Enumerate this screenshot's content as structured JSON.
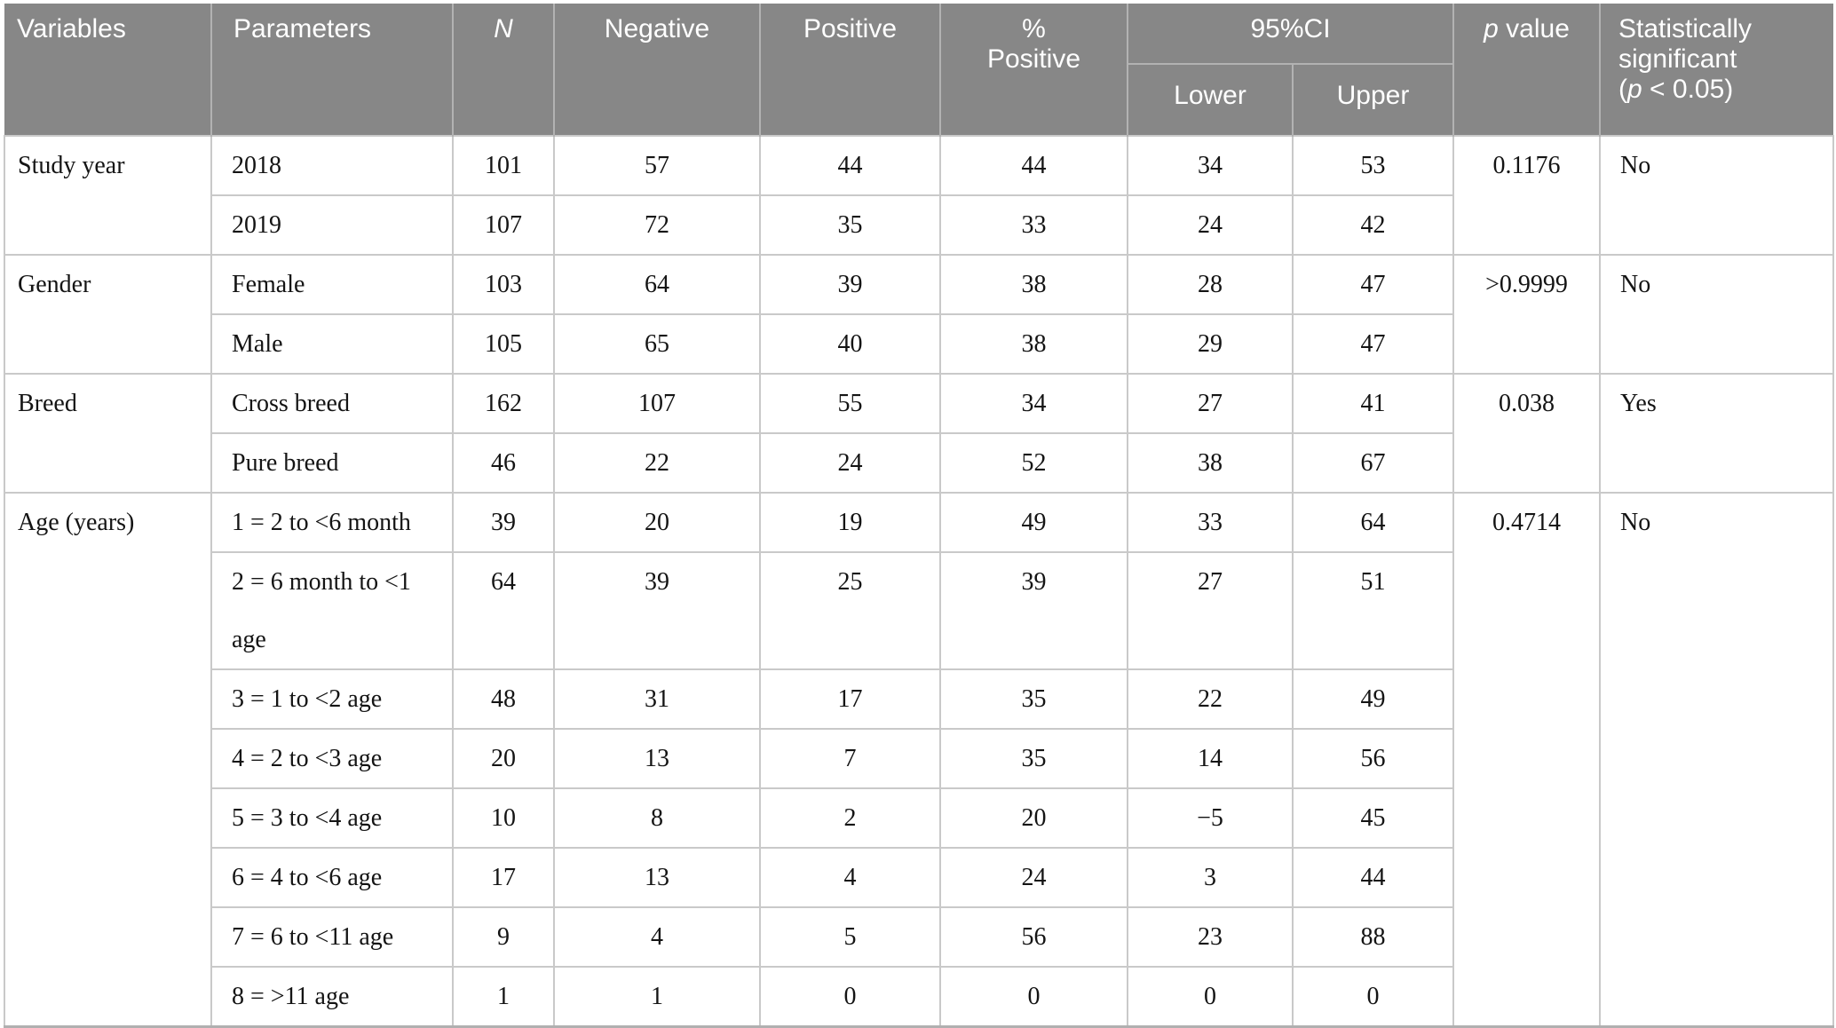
{
  "colors": {
    "header_bg": "#878787",
    "header_line": "#b2b2b2",
    "grid_line": "#c9c9c9",
    "border_bottom": "#b0b0b0"
  },
  "table": {
    "header": {
      "variables": "Variables",
      "parameters": "Parameters",
      "n_italic": "N",
      "negative": "Negative",
      "positive": "Positive",
      "pct_line1": "%",
      "pct_line2": "Positive",
      "ci": "95%CI",
      "ci_lower": "Lower",
      "ci_upper": "Upper",
      "p_italic": "p",
      "p_rest": " value",
      "sig_line1": "Statistically",
      "sig_line2": "significant",
      "sig_open": "(",
      "sig_p": "p",
      "sig_rest": " < 0.05)"
    },
    "groups": [
      {
        "variable": "Study year",
        "p_value": "0.1176",
        "significant": "No",
        "rows": [
          {
            "parameter": "2018",
            "n": "101",
            "negative": "57",
            "positive": "44",
            "pct_positive": "44",
            "lower": "34",
            "upper": "53"
          },
          {
            "parameter": "2019",
            "n": "107",
            "negative": "72",
            "positive": "35",
            "pct_positive": "33",
            "lower": "24",
            "upper": "42"
          }
        ]
      },
      {
        "variable": "Gender",
        "p_value": ">0.9999",
        "significant": "No",
        "rows": [
          {
            "parameter": "Female",
            "n": "103",
            "negative": "64",
            "positive": "39",
            "pct_positive": "38",
            "lower": "28",
            "upper": "47"
          },
          {
            "parameter": "Male",
            "n": "105",
            "negative": "65",
            "positive": "40",
            "pct_positive": "38",
            "lower": "29",
            "upper": "47"
          }
        ]
      },
      {
        "variable": "Breed",
        "p_value": "0.038",
        "significant": "Yes",
        "rows": [
          {
            "parameter": "Cross breed",
            "n": "162",
            "negative": "107",
            "positive": "55",
            "pct_positive": "34",
            "lower": "27",
            "upper": "41"
          },
          {
            "parameter": "Pure breed",
            "n": "46",
            "negative": "22",
            "positive": "24",
            "pct_positive": "52",
            "lower": "38",
            "upper": "67"
          }
        ]
      },
      {
        "variable": "Age (years)",
        "p_value": "0.4714",
        "significant": "No",
        "rows": [
          {
            "parameter": "1 = 2 to <6 month",
            "n": "39",
            "negative": "20",
            "positive": "19",
            "pct_positive": "49",
            "lower": "33",
            "upper": "64"
          },
          {
            "parameter": "2 = 6 month to <1 age",
            "n": "64",
            "negative": "39",
            "positive": "25",
            "pct_positive": "39",
            "lower": "27",
            "upper": "51"
          },
          {
            "parameter": "3 = 1 to <2 age",
            "n": "48",
            "negative": "31",
            "positive": "17",
            "pct_positive": "35",
            "lower": "22",
            "upper": "49"
          },
          {
            "parameter": "4 = 2 to <3 age",
            "n": "20",
            "negative": "13",
            "positive": "7",
            "pct_positive": "35",
            "lower": "14",
            "upper": "56"
          },
          {
            "parameter": "5 = 3 to <4 age",
            "n": "10",
            "negative": "8",
            "positive": "2",
            "pct_positive": "20",
            "lower": "−5",
            "upper": "45"
          },
          {
            "parameter": "6 = 4 to <6 age",
            "n": "17",
            "negative": "13",
            "positive": "4",
            "pct_positive": "24",
            "lower": "3",
            "upper": "44"
          },
          {
            "parameter": "7 = 6 to <11 age",
            "n": "9",
            "negative": "4",
            "positive": "5",
            "pct_positive": "56",
            "lower": "23",
            "upper": "88"
          },
          {
            "parameter": "8 = >11 age",
            "n": "1",
            "negative": "1",
            "positive": "0",
            "pct_positive": "0",
            "lower": "0",
            "upper": "0"
          }
        ]
      }
    ]
  }
}
